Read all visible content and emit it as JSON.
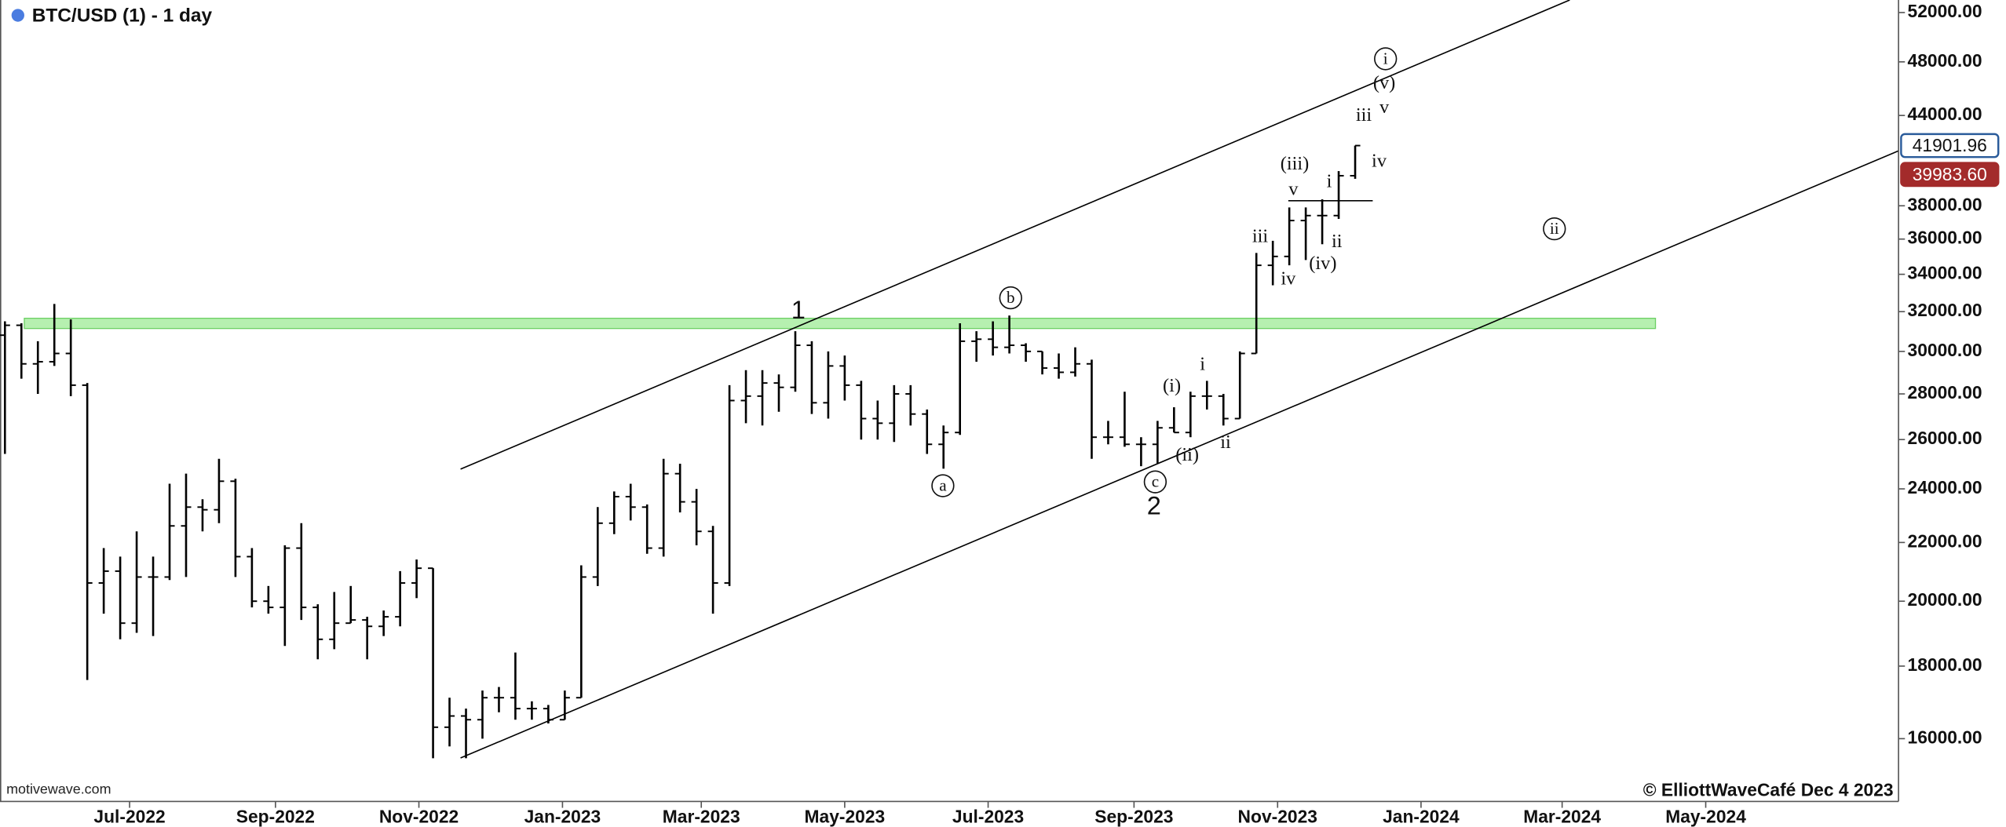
{
  "chart_data": {
    "type": "ohlc",
    "title": "BTC/USD (1) - 1 day",
    "title_dot_color": "#4a7ce0",
    "color": "#000000",
    "log_scale": true,
    "categories": [
      null,
      null,
      null,
      null,
      null,
      null,
      null,
      null,
      null,
      null,
      null,
      null,
      null,
      null,
      null,
      null,
      null,
      null,
      null,
      null,
      null,
      null,
      null,
      null,
      null,
      null,
      null,
      null,
      null,
      null,
      null,
      null,
      null,
      null,
      null,
      null,
      null,
      null,
      null,
      null,
      null,
      null,
      null,
      null,
      null,
      null,
      null,
      null,
      null,
      null,
      null,
      null,
      null,
      null,
      null,
      null,
      null,
      null,
      null,
      null,
      null,
      null,
      null,
      null,
      null,
      null,
      null,
      null,
      null,
      null,
      null,
      null,
      null,
      null,
      null,
      null,
      null,
      null,
      null,
      null,
      null,
      null,
      null
    ],
    "open": [
      30800,
      31300,
      29400,
      29500,
      29900,
      28400,
      20600,
      21000,
      19300,
      20800,
      20800,
      22600,
      23300,
      23200,
      24300,
      21500,
      20000,
      19800,
      21800,
      19800,
      18800,
      19300,
      19400,
      19200,
      19500,
      20600,
      21100,
      16300,
      16600,
      16500,
      17100,
      17100,
      16800,
      16800,
      16500,
      17100,
      20800,
      22700,
      23700,
      23300,
      21800,
      24600,
      23500,
      22400,
      20600,
      27700,
      27900,
      28500,
      28300,
      30300,
      27600,
      29300,
      28400,
      26900,
      26700,
      28000,
      27100,
      25800,
      26300,
      30500,
      30600,
      30200,
      30300,
      30000,
      29200,
      29000,
      29400,
      26100,
      26100,
      25800,
      25800,
      26500,
      26300,
      27900,
      27900,
      26900,
      29900,
      34500,
      35000,
      37100,
      37400,
      37400,
      39900
    ],
    "high": [
      31500,
      31400,
      30500,
      32400,
      31600,
      28500,
      21800,
      21500,
      22400,
      21500,
      24200,
      24600,
      23600,
      25200,
      24400,
      21800,
      20500,
      21900,
      22700,
      19900,
      20300,
      20500,
      19500,
      19700,
      21000,
      21400,
      21100,
      17100,
      16800,
      17300,
      17400,
      18400,
      17000,
      16900,
      17300,
      21200,
      23300,
      23900,
      24200,
      23400,
      25200,
      25000,
      24000,
      22600,
      28400,
      29100,
      29100,
      28900,
      31000,
      30500,
      30000,
      29800,
      28600,
      27700,
      28400,
      28400,
      27300,
      26600,
      31400,
      31000,
      31500,
      31800,
      30400,
      30000,
      29900,
      30200,
      29600,
      26800,
      28100,
      26100,
      26800,
      27400,
      28100,
      28600,
      28000,
      30000,
      35200,
      35900,
      37900,
      37900,
      38400,
      40200,
      41900
    ],
    "low": [
      25400,
      28700,
      28000,
      29300,
      27900,
      17600,
      19600,
      18800,
      19000,
      18900,
      20700,
      20800,
      22400,
      22700,
      20800,
      19800,
      19600,
      18600,
      19400,
      18200,
      18500,
      19300,
      18200,
      18900,
      19200,
      20100,
      15500,
      15800,
      15500,
      16000,
      16700,
      16500,
      16500,
      16400,
      16500,
      17100,
      20500,
      22300,
      22800,
      21600,
      21500,
      23100,
      21900,
      19600,
      20500,
      26700,
      26600,
      27200,
      28100,
      27100,
      26900,
      27700,
      26000,
      26000,
      25900,
      26600,
      25400,
      24800,
      26200,
      29500,
      29800,
      29900,
      29500,
      28900,
      28700,
      28800,
      25200,
      25800,
      25700,
      24900,
      25000,
      26300,
      26100,
      27300,
      26600,
      26900,
      29900,
      33400,
      34500,
      34800,
      35700,
      37200,
      39700
    ],
    "close": [
      31300,
      29400,
      29500,
      29900,
      28400,
      20600,
      21000,
      19300,
      20800,
      20800,
      22600,
      23300,
      23200,
      24300,
      21500,
      20000,
      19800,
      21800,
      19800,
      18800,
      19300,
      19400,
      19200,
      19500,
      20600,
      21100,
      16300,
      16600,
      16500,
      17100,
      17100,
      16800,
      16800,
      16500,
      17100,
      20800,
      22700,
      23700,
      23300,
      21800,
      24600,
      23500,
      22400,
      20600,
      27700,
      27900,
      28500,
      28300,
      30300,
      27600,
      29300,
      28400,
      26900,
      26700,
      28000,
      27100,
      25800,
      26300,
      30500,
      30600,
      30200,
      30300,
      30000,
      29200,
      29000,
      29400,
      26100,
      26100,
      25800,
      25800,
      26500,
      26300,
      27900,
      27900,
      26900,
      29900,
      34500,
      35000,
      37100,
      37400,
      37400,
      39900,
      41900
    ],
    "xlim": [
      -0.3,
      115
    ],
    "xticks": [
      {
        "value": 7.57,
        "label": "Jul-2022"
      },
      {
        "value": 16.43,
        "label": "Sep-2022"
      },
      {
        "value": 25.14,
        "label": "Nov-2022"
      },
      {
        "value": 33.86,
        "label": "Jan-2023"
      },
      {
        "value": 42.29,
        "label": "Mar-2023"
      },
      {
        "value": 51,
        "label": "May-2023"
      },
      {
        "value": 59.71,
        "label": "Jul-2023"
      },
      {
        "value": 68.57,
        "label": "Sep-2023"
      },
      {
        "value": 77.29,
        "label": "Nov-2023"
      },
      {
        "value": 86,
        "label": "Jan-2024"
      },
      {
        "value": 94.57,
        "label": "Mar-2024"
      },
      {
        "value": 103.29,
        "label": "May-2024"
      }
    ],
    "ylim": [
      14450,
      53070
    ],
    "yticks": [
      {
        "value": 16000,
        "label": "16000.00"
      },
      {
        "value": 18000,
        "label": "18000.00"
      },
      {
        "value": 20000,
        "label": "20000.00"
      },
      {
        "value": 22000,
        "label": "22000.00"
      },
      {
        "value": 24000,
        "label": "24000.00"
      },
      {
        "value": 26000,
        "label": "26000.00"
      },
      {
        "value": 28000,
        "label": "28000.00"
      },
      {
        "value": 30000,
        "label": "30000.00"
      },
      {
        "value": 32000,
        "label": "32000.00"
      },
      {
        "value": 34000,
        "label": "34000.00"
      },
      {
        "value": 36000,
        "label": "36000.00"
      },
      {
        "value": 38000,
        "label": "38000.00"
      },
      {
        "value": 44000,
        "label": "44000.00"
      },
      {
        "value": 48000,
        "label": "48000.00"
      },
      {
        "value": 52000,
        "label": "52000.00"
      }
    ],
    "price_labels": [
      {
        "value": 41901.96,
        "color": "#2a5b9a"
      },
      {
        "value": 39983.6,
        "label": "39983.60",
        "color": "#a32b2b"
      }
    ],
    "annotations": [
      {
        "text": "1",
        "emphasis": true
      },
      {
        "text": "b",
        "circled": true
      },
      {
        "text": "2",
        "emphasis": true
      },
      {
        "text": "a",
        "circled": true
      },
      {
        "text": "c",
        "circled": true
      },
      {
        "text": "(i)"
      },
      {
        "text": "i"
      },
      {
        "text": "(ii)"
      },
      {
        "text": "ii"
      },
      {
        "text": "iii"
      },
      {
        "text": "iv"
      },
      {
        "text": "(iii)"
      },
      {
        "text": "v"
      },
      {
        "text": "i"
      },
      {
        "text": "ii"
      },
      {
        "text": "(iv)"
      },
      {
        "text": "iii"
      },
      {
        "text": "iv"
      },
      {
        "text": "v"
      },
      {
        "text": "(v)"
      },
      {
        "text": "i",
        "circled": true
      },
      {
        "text": "ii",
        "circled": true
      }
    ],
    "source": "motivewave.com",
    "credit": "© ElliottWaveCafé Dec 4 2023"
  }
}
